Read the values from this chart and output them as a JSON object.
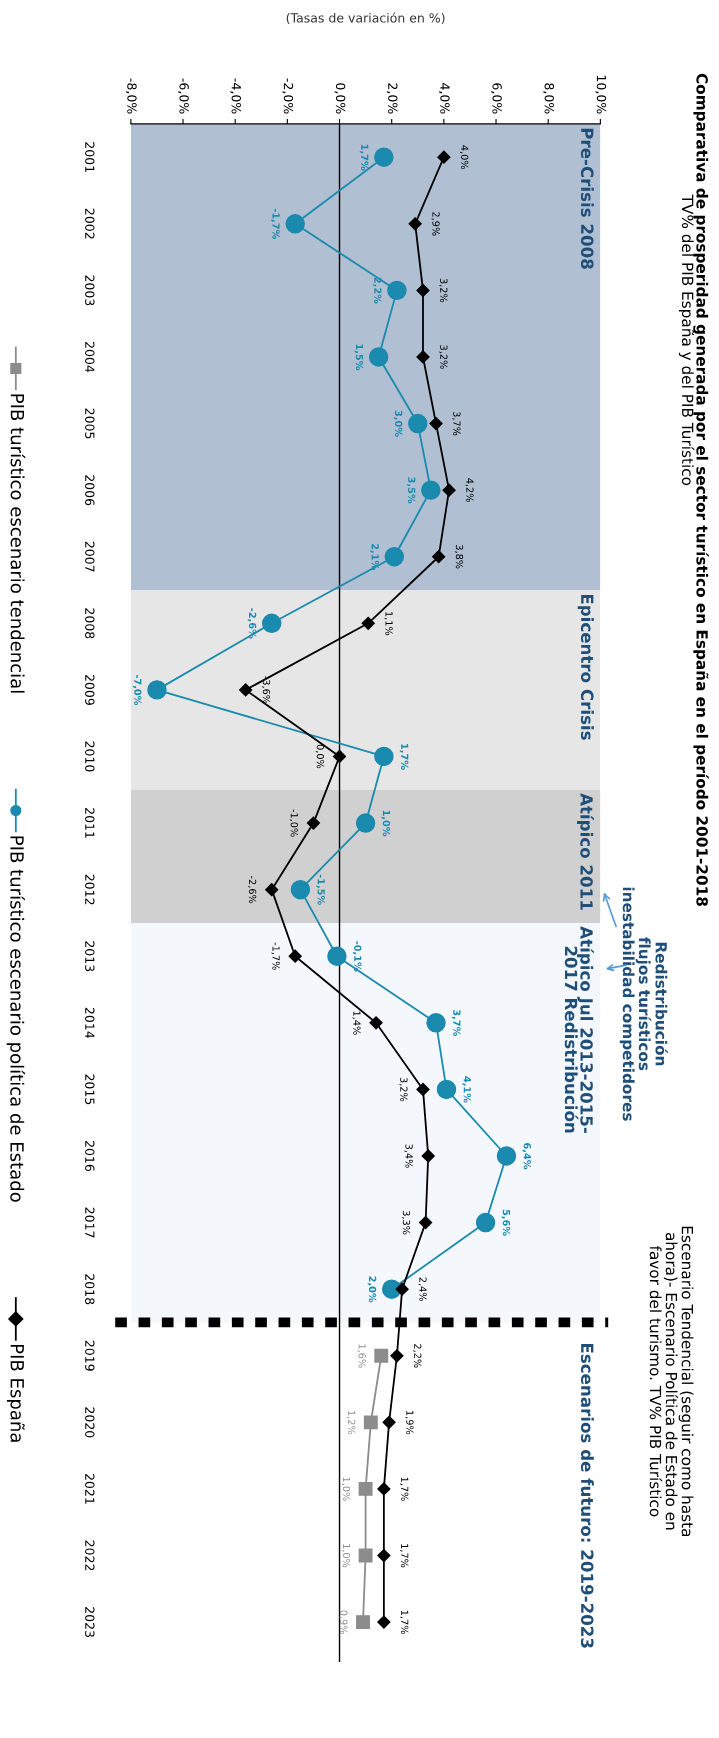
{
  "chart_data": {
    "type": "line",
    "orientation": "horizontal",
    "title": "Comparativa de prosperidad generada por el sector turístico en España en el período 2001-2018",
    "subtitle": "TV% del PIB España y del PIB Turístico",
    "xlabel": "(Tasas de variación en %)",
    "categories": [
      "2001",
      "2002",
      "2003",
      "2004",
      "2005",
      "2006",
      "2007",
      "2008",
      "2009",
      "2010",
      "2011",
      "2012",
      "2013",
      "2014",
      "2015",
      "2016",
      "2017",
      "2018",
      "2019",
      "2020",
      "2021",
      "2022",
      "2023"
    ],
    "series": [
      {
        "name": "PIB turístico escenario tendencial",
        "color": "#8c8c8c",
        "marker": "square",
        "values": [
          null,
          null,
          null,
          null,
          null,
          null,
          null,
          null,
          null,
          null,
          null,
          null,
          null,
          null,
          null,
          null,
          null,
          null,
          1.6,
          1.2,
          1.0,
          1.0,
          0.9
        ],
        "value_labels": [
          null,
          null,
          null,
          null,
          null,
          null,
          null,
          null,
          null,
          null,
          null,
          null,
          null,
          null,
          null,
          null,
          null,
          null,
          "1,6%",
          "1,2%",
          "1,0%",
          "1,0%",
          "0,9%"
        ]
      },
      {
        "name": "PIB turístico escenario política de Estado",
        "color": "#1a8aae",
        "marker": "circle",
        "values": [
          1.7,
          -1.7,
          2.2,
          1.5,
          3.0,
          3.5,
          2.1,
          -2.6,
          -7.0,
          1.7,
          1.0,
          -1.5,
          -0.1,
          3.7,
          4.1,
          6.4,
          5.6,
          2.0,
          null,
          null,
          null,
          null,
          null
        ],
        "value_labels": [
          "1,7%",
          "-1,7%",
          "2,2%",
          "1,5%",
          "3,0%",
          "3,5%",
          "2,1%",
          "-2,6%",
          "-7,0%",
          "1,7%",
          "1,0%",
          "-1,5%",
          "-0,1%",
          "3,7%",
          "4,1%",
          "6,4%",
          "5,6%",
          "2,0%",
          null,
          null,
          null,
          null,
          null
        ]
      },
      {
        "name": "PIB España",
        "color": "#000000",
        "marker": "diamond",
        "values": [
          4.0,
          2.9,
          3.2,
          3.2,
          3.7,
          4.2,
          3.8,
          1.1,
          -3.6,
          0.0,
          -1.0,
          -2.6,
          -1.7,
          1.4,
          3.2,
          3.4,
          3.3,
          2.4,
          2.2,
          1.9,
          1.7,
          1.7,
          1.7
        ],
        "value_labels": [
          "4,0%",
          "2,9%",
          "3,2%",
          "3,2%",
          "3,7%",
          "4,2%",
          "3,8%",
          "1,1%",
          "-3,6%",
          "0,0%",
          "-1,0%",
          "-2,6%",
          "-1,7%",
          "1,4%",
          "3,2%",
          "3,4%",
          "3,3%",
          "2,4%",
          "2,2%",
          "1,9%",
          "1,7%",
          "1,7%",
          "1,7%"
        ]
      }
    ],
    "xlim": [
      -8,
      10
    ],
    "xticks": [
      {
        "value": -8,
        "label": "-8,0%"
      },
      {
        "value": -6,
        "label": "-6,0%"
      },
      {
        "value": -4,
        "label": "-4,0%"
      },
      {
        "value": -2,
        "label": "-2,0%"
      },
      {
        "value": 0,
        "label": "0,0%"
      },
      {
        "value": 2,
        "label": "2,0%"
      },
      {
        "value": 4,
        "label": "4,0%"
      },
      {
        "value": 6,
        "label": "6,0%"
      },
      {
        "value": 8,
        "label": "8,0%"
      },
      {
        "value": 10,
        "label": "10,0%"
      }
    ],
    "bands": [
      {
        "axis": "y",
        "from": "2001",
        "to": "2007",
        "label": "Pre-Crisis 2008",
        "color": "#b0bfd2"
      },
      {
        "axis": "y",
        "from": "2008",
        "to": "2010",
        "label": "Epicentro Crisis",
        "color": "#e6e6e6"
      },
      {
        "axis": "y",
        "from": "2011",
        "to": "2012",
        "label": "Atípico 2011",
        "color": "#d0d0d0"
      },
      {
        "axis": "y",
        "from": "2013",
        "to": "2018",
        "label": "Atípico Jul 2013-2015-\n2017 Redistribución",
        "color": "#f4f8fc"
      }
    ],
    "ref_lines": [
      {
        "axis": "y",
        "value": "2018",
        "color": "#000000",
        "line_style": "dashed"
      }
    ],
    "annotations": [
      "Escenarios de futuro: 2019-2023",
      "Redistribución\nflujos turísticos\ninestabilidad competidores",
      "Escenario Tendencial (seguir como hasta\nahora)- Escenario Política de Estado en\nfavor del turismo. TV% PIB Turístico"
    ],
    "legend": "left",
    "grid": false,
    "line_style": "solid"
  }
}
